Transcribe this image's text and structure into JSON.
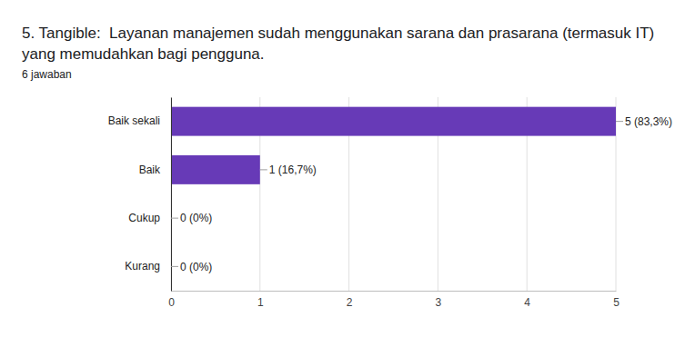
{
  "chart_data": {
    "type": "bar",
    "title": "5. Tangible:  Layanan manajemen sudah menggunakan sarana dan prasarana (termasuk IT) yang memudahkan bagi pengguna.",
    "subtitle": "6 jawaban",
    "categories": [
      "Baik sekali",
      "Baik",
      "Cukup",
      "Kurang"
    ],
    "values": [
      5,
      1,
      0,
      0
    ],
    "value_labels": [
      "5 (83,3%)",
      "1 (16,7%)",
      "0 (0%)",
      "0 (0%)"
    ],
    "color": "#673ab7",
    "orientation": "horizontal",
    "xlim": [
      0,
      5
    ],
    "xticks": [
      0,
      1,
      2,
      3,
      4,
      5
    ],
    "grid": true,
    "data_labels": true
  }
}
